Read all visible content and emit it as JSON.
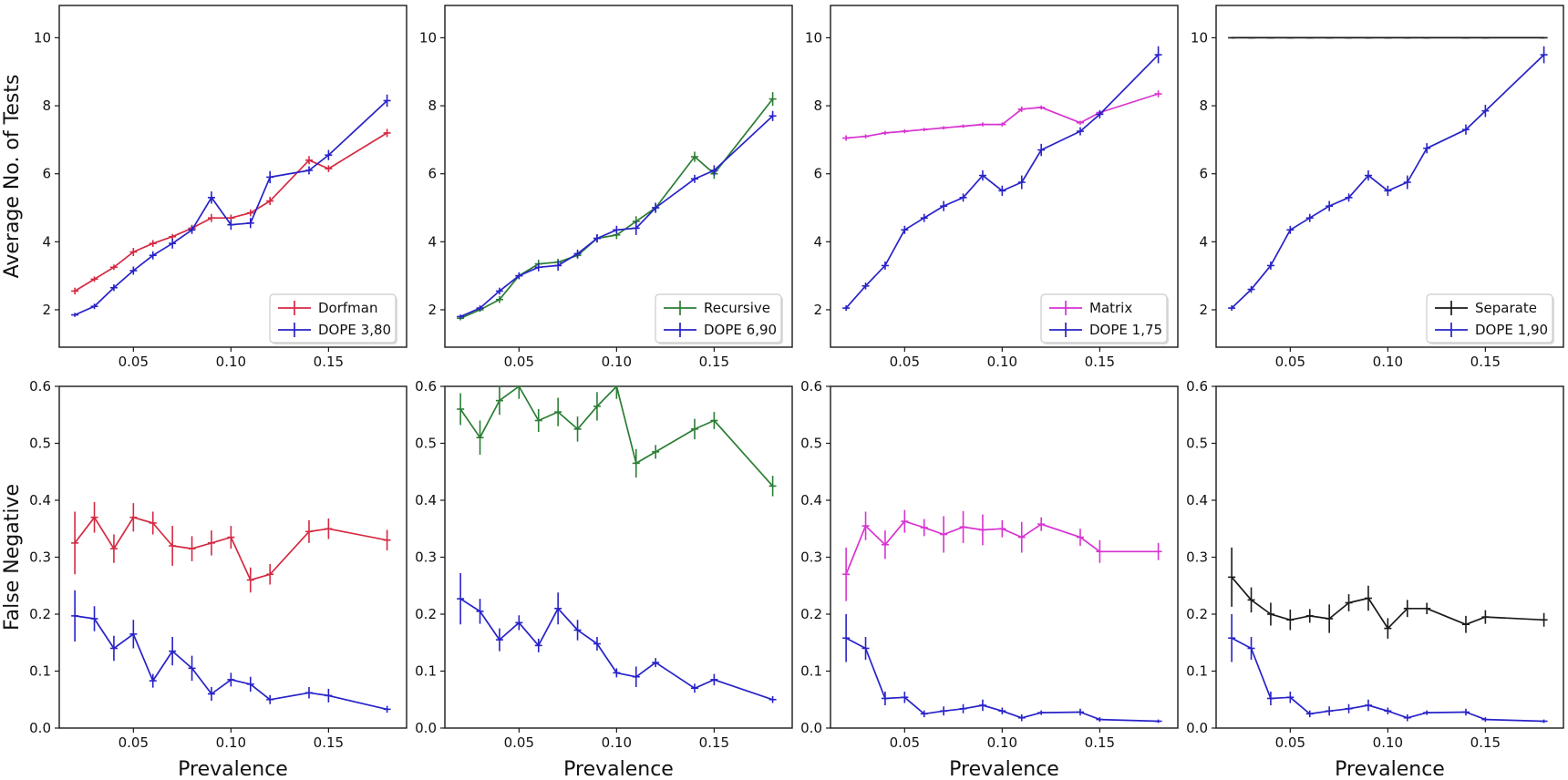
{
  "figure": {
    "xlabel": "Prevalence",
    "row1_ylabel": "Average No. of Tests",
    "row2_ylabel": "False Negative",
    "x_tick_labels": [
      "0.05",
      "0.10",
      "0.15"
    ],
    "x_tick_values": [
      0.05,
      0.1,
      0.15
    ],
    "row1_ytick_labels": [
      "2",
      "4",
      "6",
      "8",
      "10"
    ],
    "row1_ytick_values": [
      2,
      4,
      6,
      8,
      10
    ],
    "row2_ytick_labels": [
      "0.0",
      "0.1",
      "0.2",
      "0.3",
      "0.4",
      "0.5",
      "0.6"
    ],
    "row2_ytick_values": [
      0.0,
      0.1,
      0.2,
      0.3,
      0.4,
      0.5,
      0.6
    ],
    "xlim": [
      0.012,
      0.19
    ],
    "row1_ylim": [
      0.9,
      10.95
    ],
    "row2_ylim": [
      0.0,
      0.6
    ],
    "spine_color": "#1a1a1a",
    "legend_border_color": "#cccccc",
    "grid": "off",
    "legend_position": "lower right (top-row panels only)"
  },
  "chart_data": [
    {
      "type": "line",
      "panel": "top-1",
      "ylabel": "Average No. of Tests",
      "x": [
        0.02,
        0.03,
        0.04,
        0.05,
        0.06,
        0.07,
        0.08,
        0.09,
        0.1,
        0.11,
        0.12,
        0.14,
        0.15,
        0.18
      ],
      "ylim": [
        0.9,
        10.95
      ],
      "legend": true,
      "series": [
        {
          "name": "Dorfman",
          "color": "#d42a42",
          "values": [
            2.55,
            2.9,
            3.25,
            3.7,
            3.95,
            4.15,
            4.4,
            4.7,
            4.7,
            4.85,
            5.2,
            6.4,
            6.15,
            7.2
          ],
          "errors": [
            0.1,
            0.08,
            0.08,
            0.12,
            0.1,
            0.08,
            0.1,
            0.12,
            0.1,
            0.1,
            0.12,
            0.12,
            0.1,
            0.12
          ]
        },
        {
          "name": "DOPE 3,80",
          "color": "#2722c8",
          "values": [
            1.85,
            2.1,
            2.65,
            3.15,
            3.6,
            3.95,
            4.35,
            5.3,
            4.5,
            4.55,
            5.9,
            6.1,
            6.55,
            8.15
          ],
          "errors": [
            0.06,
            0.08,
            0.1,
            0.12,
            0.12,
            0.15,
            0.12,
            0.18,
            0.15,
            0.15,
            0.18,
            0.12,
            0.15,
            0.18
          ]
        }
      ]
    },
    {
      "type": "line",
      "panel": "top-2",
      "x": [
        0.02,
        0.03,
        0.04,
        0.05,
        0.06,
        0.07,
        0.08,
        0.09,
        0.1,
        0.11,
        0.12,
        0.14,
        0.15,
        0.18
      ],
      "ylim": [
        0.9,
        10.95
      ],
      "legend": true,
      "series": [
        {
          "name": "Recursive",
          "color": "#2b7e34",
          "values": [
            1.75,
            2.0,
            2.3,
            3.0,
            3.35,
            3.4,
            3.6,
            4.1,
            4.2,
            4.6,
            5.0,
            6.5,
            6.0,
            8.2
          ],
          "errors": [
            0.06,
            0.06,
            0.1,
            0.1,
            0.12,
            0.1,
            0.1,
            0.12,
            0.12,
            0.15,
            0.12,
            0.15,
            0.15,
            0.2
          ]
        },
        {
          "name": "DOPE 6,90",
          "color": "#2722c8",
          "values": [
            1.8,
            2.05,
            2.55,
            3.0,
            3.25,
            3.3,
            3.65,
            4.1,
            4.35,
            4.4,
            5.0,
            5.85,
            6.1,
            7.7
          ],
          "errors": [
            0.06,
            0.08,
            0.1,
            0.1,
            0.12,
            0.15,
            0.12,
            0.12,
            0.12,
            0.2,
            0.15,
            0.12,
            0.15,
            0.15
          ]
        }
      ]
    },
    {
      "type": "line",
      "panel": "top-3",
      "x": [
        0.02,
        0.03,
        0.04,
        0.05,
        0.06,
        0.07,
        0.08,
        0.09,
        0.1,
        0.11,
        0.12,
        0.14,
        0.15,
        0.18
      ],
      "ylim": [
        0.9,
        10.95
      ],
      "legend": true,
      "series": [
        {
          "name": "Matrix",
          "color": "#d733d1",
          "values": [
            7.05,
            7.1,
            7.2,
            7.25,
            7.3,
            7.35,
            7.4,
            7.45,
            7.45,
            7.9,
            7.95,
            7.5,
            7.8,
            8.35
          ],
          "errors": [
            0.08,
            0.06,
            0.06,
            0.06,
            0.05,
            0.05,
            0.05,
            0.06,
            0.06,
            0.08,
            0.06,
            0.06,
            0.06,
            0.1
          ]
        },
        {
          "name": "DOPE 1,75",
          "color": "#2722c8",
          "values": [
            2.05,
            2.7,
            3.3,
            4.35,
            4.7,
            5.05,
            5.3,
            5.95,
            5.5,
            5.75,
            6.7,
            7.25,
            7.75,
            9.5
          ],
          "errors": [
            0.08,
            0.1,
            0.12,
            0.12,
            0.12,
            0.15,
            0.12,
            0.15,
            0.15,
            0.2,
            0.18,
            0.12,
            0.12,
            0.25
          ]
        }
      ]
    },
    {
      "type": "line",
      "panel": "top-4",
      "x": [
        0.02,
        0.03,
        0.04,
        0.05,
        0.06,
        0.07,
        0.08,
        0.09,
        0.1,
        0.11,
        0.12,
        0.14,
        0.15,
        0.18
      ],
      "ylim": [
        0.9,
        10.95
      ],
      "legend": true,
      "series": [
        {
          "name": "Separate",
          "color": "#1a1a1a",
          "values": [
            10,
            10,
            10,
            10,
            10,
            10,
            10,
            10,
            10,
            10,
            10,
            10,
            10,
            10
          ],
          "errors": [
            0.02,
            0.02,
            0.02,
            0.02,
            0.02,
            0.02,
            0.02,
            0.02,
            0.02,
            0.02,
            0.02,
            0.02,
            0.02,
            0.02
          ]
        },
        {
          "name": "DOPE 1,90",
          "color": "#2722c8",
          "values": [
            2.05,
            2.6,
            3.3,
            4.35,
            4.7,
            5.05,
            5.3,
            5.95,
            5.5,
            5.75,
            6.75,
            7.3,
            7.85,
            9.5
          ],
          "errors": [
            0.08,
            0.1,
            0.12,
            0.12,
            0.12,
            0.15,
            0.12,
            0.15,
            0.15,
            0.2,
            0.15,
            0.15,
            0.18,
            0.25
          ]
        }
      ]
    },
    {
      "type": "line",
      "panel": "bottom-1",
      "ylabel": "False Negative",
      "xlabel": "Prevalence",
      "x": [
        0.02,
        0.03,
        0.04,
        0.05,
        0.06,
        0.07,
        0.08,
        0.09,
        0.1,
        0.11,
        0.12,
        0.14,
        0.15,
        0.18
      ],
      "ylim": [
        0.0,
        0.6
      ],
      "legend": false,
      "series": [
        {
          "name": "Dorfman",
          "color": "#d42a42",
          "values": [
            0.325,
            0.37,
            0.315,
            0.37,
            0.36,
            0.32,
            0.315,
            0.325,
            0.335,
            0.26,
            0.27,
            0.345,
            0.35,
            0.33
          ],
          "errors": [
            0.055,
            0.027,
            0.025,
            0.025,
            0.02,
            0.035,
            0.022,
            0.022,
            0.02,
            0.022,
            0.018,
            0.02,
            0.018,
            0.018
          ]
        },
        {
          "name": "DOPE 3,80",
          "color": "#2722c8",
          "values": [
            0.197,
            0.192,
            0.14,
            0.165,
            0.083,
            0.135,
            0.105,
            0.06,
            0.085,
            0.077,
            0.05,
            0.062,
            0.057,
            0.033
          ],
          "errors": [
            0.045,
            0.022,
            0.022,
            0.025,
            0.012,
            0.025,
            0.022,
            0.012,
            0.012,
            0.013,
            0.008,
            0.01,
            0.012,
            0.006
          ]
        }
      ]
    },
    {
      "type": "line",
      "panel": "bottom-2",
      "xlabel": "Prevalence",
      "x": [
        0.02,
        0.03,
        0.04,
        0.05,
        0.06,
        0.07,
        0.08,
        0.09,
        0.1,
        0.11,
        0.12,
        0.14,
        0.15,
        0.18
      ],
      "ylim": [
        0.0,
        0.6
      ],
      "legend": false,
      "series": [
        {
          "name": "Recursive",
          "color": "#2b7e34",
          "values": [
            0.56,
            0.51,
            0.575,
            0.6,
            0.54,
            0.555,
            0.525,
            0.565,
            0.6,
            0.465,
            0.485,
            0.525,
            0.54,
            0.425
          ],
          "errors": [
            0.028,
            0.03,
            0.025,
            0.022,
            0.02,
            0.025,
            0.022,
            0.025,
            0.022,
            0.025,
            0.012,
            0.018,
            0.015,
            0.018
          ]
        },
        {
          "name": "DOPE 6,90",
          "color": "#2722c8",
          "values": [
            0.227,
            0.205,
            0.155,
            0.185,
            0.145,
            0.21,
            0.172,
            0.148,
            0.097,
            0.09,
            0.115,
            0.07,
            0.085,
            0.05
          ],
          "errors": [
            0.045,
            0.022,
            0.02,
            0.013,
            0.012,
            0.028,
            0.018,
            0.012,
            0.008,
            0.018,
            0.008,
            0.008,
            0.01,
            0.006
          ]
        }
      ]
    },
    {
      "type": "line",
      "panel": "bottom-3",
      "xlabel": "Prevalence",
      "x": [
        0.02,
        0.03,
        0.04,
        0.05,
        0.06,
        0.07,
        0.08,
        0.09,
        0.1,
        0.11,
        0.12,
        0.14,
        0.15,
        0.18
      ],
      "ylim": [
        0.0,
        0.6
      ],
      "legend": false,
      "series": [
        {
          "name": "Matrix",
          "color": "#d733d1",
          "values": [
            0.27,
            0.355,
            0.322,
            0.363,
            0.352,
            0.34,
            0.353,
            0.348,
            0.35,
            0.335,
            0.358,
            0.335,
            0.31,
            0.31
          ],
          "errors": [
            0.047,
            0.025,
            0.025,
            0.02,
            0.015,
            0.032,
            0.028,
            0.027,
            0.015,
            0.027,
            0.012,
            0.015,
            0.02,
            0.015
          ]
        },
        {
          "name": "DOPE 1,75",
          "color": "#2722c8",
          "values": [
            0.158,
            0.14,
            0.052,
            0.054,
            0.025,
            0.03,
            0.034,
            0.04,
            0.03,
            0.018,
            0.027,
            0.028,
            0.015,
            0.012
          ],
          "errors": [
            0.042,
            0.02,
            0.012,
            0.01,
            0.006,
            0.008,
            0.008,
            0.01,
            0.006,
            0.006,
            0.004,
            0.006,
            0.004,
            0.003
          ]
        }
      ]
    },
    {
      "type": "line",
      "panel": "bottom-4",
      "xlabel": "Prevalence",
      "x": [
        0.02,
        0.03,
        0.04,
        0.05,
        0.06,
        0.07,
        0.08,
        0.09,
        0.1,
        0.11,
        0.12,
        0.14,
        0.15,
        0.18
      ],
      "ylim": [
        0.0,
        0.6
      ],
      "legend": false,
      "series": [
        {
          "name": "Separate",
          "color": "#1a1a1a",
          "values": [
            0.265,
            0.225,
            0.2,
            0.19,
            0.197,
            0.192,
            0.22,
            0.228,
            0.175,
            0.21,
            0.21,
            0.182,
            0.195,
            0.19
          ],
          "errors": [
            0.052,
            0.022,
            0.02,
            0.018,
            0.012,
            0.025,
            0.015,
            0.022,
            0.018,
            0.015,
            0.01,
            0.015,
            0.012,
            0.012
          ]
        },
        {
          "name": "DOPE 1,90",
          "color": "#2722c8",
          "values": [
            0.158,
            0.14,
            0.052,
            0.054,
            0.025,
            0.03,
            0.034,
            0.04,
            0.03,
            0.018,
            0.027,
            0.028,
            0.015,
            0.012
          ],
          "errors": [
            0.042,
            0.02,
            0.012,
            0.01,
            0.006,
            0.008,
            0.008,
            0.01,
            0.006,
            0.006,
            0.004,
            0.006,
            0.004,
            0.003
          ]
        }
      ]
    }
  ]
}
